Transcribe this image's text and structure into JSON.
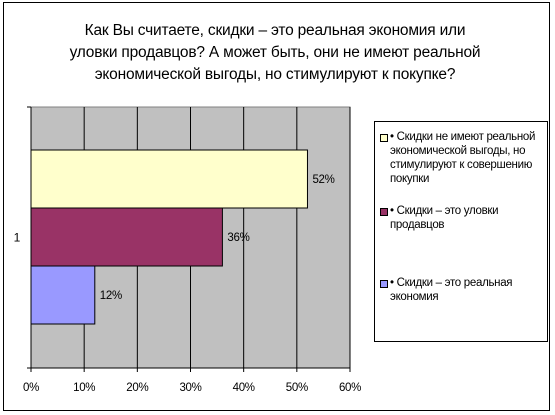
{
  "chart_data": {
    "type": "bar",
    "orientation": "horizontal",
    "title_lines": [
      "Как Вы считаете, скидки – это реальная экономия или",
      "уловки продавцов? А может быть, они не имеют реальной",
      "экономической выгоды, но стимулируют к покупке?"
    ],
    "categories": [
      "1"
    ],
    "series": [
      {
        "name": "• Скидки не имеют реальной экономической выгоды, но стимулируют к совершению покупки",
        "values": [
          52
        ],
        "data_label": "52%",
        "color": "#ffffcc"
      },
      {
        "name": "• Скидки – это уловки продавцов",
        "values": [
          36
        ],
        "data_label": "36%",
        "color": "#993366"
      },
      {
        "name": "• Скидки – это реальная экономия",
        "values": [
          12
        ],
        "data_label": "12%",
        "color": "#9999ff"
      }
    ],
    "xlim": [
      0,
      60
    ],
    "x_ticks": [
      "0%",
      "10%",
      "20%",
      "30%",
      "40%",
      "50%",
      "60%"
    ],
    "plot_background": "#c0c0c0",
    "gridlines": "vertical",
    "legend_position": "right"
  }
}
